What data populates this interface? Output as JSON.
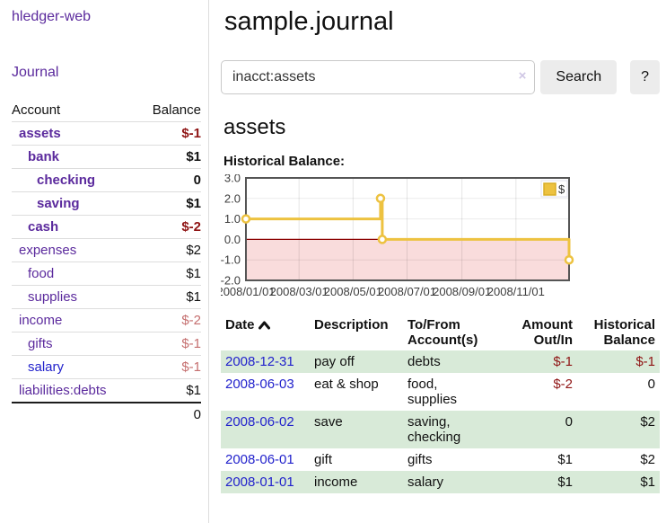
{
  "colors": {
    "link_purple": "#5b2a9d",
    "link_blue": "#2222cc",
    "negative_dark": "#8f1414",
    "negative_light": "#c56f6f",
    "row_stripe_green": "#d8ead8",
    "chart_series_gold": "#EDC240",
    "chart_negative_fill": "#f9dcdc",
    "chart_zero_line": "#8b0000",
    "chart_border": "#555555"
  },
  "sidebar": {
    "app_title": "hledger-web",
    "nav_journal": "Journal",
    "accounts": {
      "header_account": "Account",
      "header_balance": "Balance",
      "rows": [
        {
          "name": "assets",
          "balance": "$-1",
          "depth": 1,
          "bold": true,
          "neg": "dark"
        },
        {
          "name": "bank",
          "balance": "$1",
          "depth": 2,
          "bold": true
        },
        {
          "name": "checking",
          "balance": "0",
          "depth": 3,
          "bold": true
        },
        {
          "name": "saving",
          "balance": "$1",
          "depth": 3,
          "bold": true
        },
        {
          "name": "cash",
          "balance": "$-2",
          "depth": 2,
          "bold": true,
          "neg": "dark"
        },
        {
          "name": "expenses",
          "balance": "$2",
          "depth": 1
        },
        {
          "name": "food",
          "balance": "$1",
          "depth": 2
        },
        {
          "name": "supplies",
          "balance": "$1",
          "depth": 2
        },
        {
          "name": "income",
          "balance": "$-2",
          "depth": 1,
          "neg": "light"
        },
        {
          "name": "gifts",
          "balance": "$-1",
          "depth": 2,
          "neg": "light"
        },
        {
          "name": "salary",
          "balance": "$-1",
          "depth": 2,
          "neg": "light",
          "link": "blue"
        },
        {
          "name": "liabilities:debts",
          "balance": "$1",
          "depth": 1
        }
      ],
      "total": "0"
    }
  },
  "header": {
    "title": "sample.journal"
  },
  "search": {
    "value": "inacct:assets",
    "clear_icon": "×",
    "button_label": "Search",
    "help_label": "?"
  },
  "account_page": {
    "heading": "assets",
    "chart_label": "Historical Balance:"
  },
  "chart_data": {
    "type": "line",
    "title": "Historical Balance:",
    "step": true,
    "xmin": "2008-01-01",
    "xmax": "2008-12-31",
    "ylim": [
      -2,
      3
    ],
    "yticks": [
      "3.0",
      "2.0",
      "1.0",
      "0.0",
      "-1.0",
      "-2.0"
    ],
    "xticks": [
      {
        "d": "2008-01-01",
        "label": "2008/01/01"
      },
      {
        "d": "2008-03-01",
        "label": "2008/03/01"
      },
      {
        "d": "2008-05-01",
        "label": "2008/05/01"
      },
      {
        "d": "2008-07-01",
        "label": "2008/07/01"
      },
      {
        "d": "2008-09-01",
        "label": "2008/09/01"
      },
      {
        "d": "2008-11-01",
        "label": "2008/11/01"
      }
    ],
    "series": [
      {
        "name": "$",
        "color": "#EDC240",
        "points": [
          {
            "x": "2008-01-01",
            "y": 1
          },
          {
            "x": "2008-06-01",
            "y": 2
          },
          {
            "x": "2008-06-03",
            "y": 0
          },
          {
            "x": "2008-12-31",
            "y": -1
          }
        ]
      }
    ],
    "legend": {
      "label": "$",
      "position": "top-right"
    },
    "grid": true,
    "negative_region_shaded": true
  },
  "register_table": {
    "headers": {
      "date": "Date",
      "sort_indicator": "ascending",
      "description": "Description",
      "accounts": "To/From Account(s)",
      "amount": "Amount Out/In",
      "balance": "Historical Balance"
    },
    "rows": [
      {
        "date": "2008-12-31",
        "description": "pay off",
        "accounts": "debts",
        "amount": "$-1",
        "amount_neg": true,
        "balance": "$-1",
        "balance_neg": true
      },
      {
        "date": "2008-06-03",
        "description": "eat & shop",
        "accounts": "food, supplies",
        "amount": "$-2",
        "amount_neg": true,
        "balance": "0"
      },
      {
        "date": "2008-06-02",
        "description": "save",
        "accounts": "saving, checking",
        "amount": "0",
        "balance": "$2"
      },
      {
        "date": "2008-06-01",
        "description": "gift",
        "accounts": "gifts",
        "amount": "$1",
        "balance": "$2"
      },
      {
        "date": "2008-01-01",
        "description": "income",
        "accounts": "salary",
        "amount": "$1",
        "balance": "$1"
      }
    ]
  }
}
